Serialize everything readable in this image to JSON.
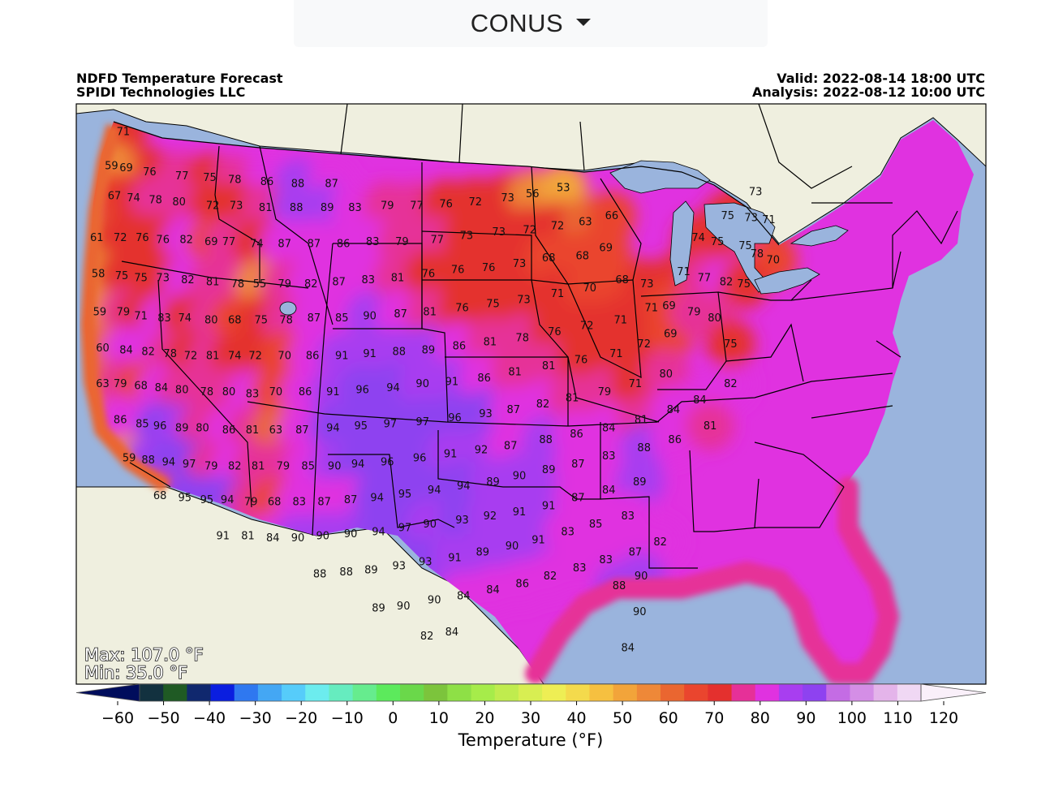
{
  "region_selector": {
    "value": "CONUS"
  },
  "header": {
    "title": "NDFD Temperature Forecast",
    "producer": "SPIDI Technologies LLC",
    "valid": "Valid: 2022-08-14 18:00 UTC",
    "analysis": "Analysis: 2022-08-12 10:00 UTC"
  },
  "stats": {
    "max": "Max: 107.0 °F",
    "min": "Min: 35.0 °F"
  },
  "colorbar": {
    "label": "Temperature (°F)",
    "ticks": [
      -60,
      -50,
      -40,
      -30,
      -20,
      -10,
      0,
      10,
      20,
      30,
      40,
      50,
      60,
      70,
      80,
      90,
      100,
      110,
      120
    ],
    "colors": [
      "#000d5c",
      "#12313f",
      "#1f5a24",
      "#10286e",
      "#0a1ee0",
      "#2f78f0",
      "#44a7f4",
      "#56ccfa",
      "#6cecee",
      "#66ecbf",
      "#66ec8e",
      "#5cea5c",
      "#6ad84a",
      "#7cc43c",
      "#8ee046",
      "#a6ec4a",
      "#c0ec4e",
      "#d8ee52",
      "#eeee54",
      "#f4da4c",
      "#f6c040",
      "#f2a43a",
      "#ee8838",
      "#ea6630",
      "#ea452e",
      "#e4302e",
      "#e63098",
      "#e032e0",
      "#a83ef0",
      "#8e42f0",
      "#c46ce4",
      "#d48ee6",
      "#e4b4ea",
      "#f0d8f4",
      "#faf0fa"
    ],
    "colors_note": "map palette",
    "ocean": "#9ab4dd",
    "land": "#efefdf",
    "lake": "#9ab4dd"
  },
  "station_values": [
    {
      "v": 71,
      "lon": -123.8,
      "lat": 49.6
    },
    {
      "v": 69,
      "lon": -123.6,
      "lat": 47.8
    },
    {
      "v": 76,
      "lon": -122.0,
      "lat": 47.6
    },
    {
      "v": 77,
      "lon": -119.8,
      "lat": 47.4
    },
    {
      "v": 75,
      "lon": -117.9,
      "lat": 47.3
    },
    {
      "v": 78,
      "lon": -116.2,
      "lat": 47.2
    },
    {
      "v": 86,
      "lon": -114.0,
      "lat": 47.1
    },
    {
      "v": 88,
      "lon": -111.9,
      "lat": 47.0
    },
    {
      "v": 87,
      "lon": -109.6,
      "lat": 47.0
    },
    {
      "v": 59,
      "lon": -124.6,
      "lat": 47.9
    },
    {
      "v": 67,
      "lon": -124.4,
      "lat": 46.4
    },
    {
      "v": 74,
      "lon": -123.1,
      "lat": 46.3
    },
    {
      "v": 78,
      "lon": -121.6,
      "lat": 46.2
    },
    {
      "v": 80,
      "lon": -120.0,
      "lat": 46.1
    },
    {
      "v": 72,
      "lon": -117.7,
      "lat": 45.9
    },
    {
      "v": 73,
      "lon": -116.1,
      "lat": 45.9
    },
    {
      "v": 81,
      "lon": -114.1,
      "lat": 45.8
    },
    {
      "v": 88,
      "lon": -112.0,
      "lat": 45.8
    },
    {
      "v": 89,
      "lon": -109.9,
      "lat": 45.8
    },
    {
      "v": 83,
      "lon": -108.0,
      "lat": 45.8
    },
    {
      "v": 79,
      "lon": -105.8,
      "lat": 45.9
    },
    {
      "v": 77,
      "lon": -103.8,
      "lat": 45.9
    },
    {
      "v": 76,
      "lon": -101.8,
      "lat": 46.0
    },
    {
      "v": 72,
      "lon": -99.8,
      "lat": 46.1
    },
    {
      "v": 73,
      "lon": -97.6,
      "lat": 46.3
    },
    {
      "v": 56,
      "lon": -95.9,
      "lat": 46.5
    },
    {
      "v": 53,
      "lon": -93.8,
      "lat": 46.8
    },
    {
      "v": 61,
      "lon": -125.6,
      "lat": 44.3
    },
    {
      "v": 72,
      "lon": -124.0,
      "lat": 44.3
    },
    {
      "v": 76,
      "lon": -122.5,
      "lat": 44.3
    },
    {
      "v": 76,
      "lon": -121.1,
      "lat": 44.2
    },
    {
      "v": 82,
      "lon": -119.5,
      "lat": 44.2
    },
    {
      "v": 69,
      "lon": -117.8,
      "lat": 44.1
    },
    {
      "v": 77,
      "lon": -116.6,
      "lat": 44.1
    },
    {
      "v": 74,
      "lon": -114.7,
      "lat": 44.0
    },
    {
      "v": 87,
      "lon": -112.8,
      "lat": 44.0
    },
    {
      "v": 87,
      "lon": -110.8,
      "lat": 44.0
    },
    {
      "v": 86,
      "lon": -108.8,
      "lat": 44.0
    },
    {
      "v": 83,
      "lon": -106.8,
      "lat": 44.1
    },
    {
      "v": 79,
      "lon": -104.8,
      "lat": 44.1
    },
    {
      "v": 77,
      "lon": -102.4,
      "lat": 44.2
    },
    {
      "v": 73,
      "lon": -100.4,
      "lat": 44.4
    },
    {
      "v": 73,
      "lon": -98.2,
      "lat": 44.6
    },
    {
      "v": 72,
      "lon": -96.1,
      "lat": 44.7
    },
    {
      "v": 72,
      "lon": -94.2,
      "lat": 44.9
    },
    {
      "v": 63,
      "lon": -92.3,
      "lat": 45.1
    },
    {
      "v": 66,
      "lon": -90.5,
      "lat": 45.4
    },
    {
      "v": 58,
      "lon": -125.5,
      "lat": 42.5
    },
    {
      "v": 75,
      "lon": -123.9,
      "lat": 42.4
    },
    {
      "v": 75,
      "lon": -122.6,
      "lat": 42.3
    },
    {
      "v": 73,
      "lon": -121.1,
      "lat": 42.3
    },
    {
      "v": 82,
      "lon": -119.4,
      "lat": 42.2
    },
    {
      "v": 81,
      "lon": -117.7,
      "lat": 42.1
    },
    {
      "v": 78,
      "lon": -116.0,
      "lat": 42.0
    },
    {
      "v": 55,
      "lon": -114.5,
      "lat": 42.0
    },
    {
      "v": 79,
      "lon": -112.8,
      "lat": 42.0
    },
    {
      "v": 82,
      "lon": -111.0,
      "lat": 42.0
    },
    {
      "v": 87,
      "lon": -109.1,
      "lat": 42.1
    },
    {
      "v": 83,
      "lon": -107.1,
      "lat": 42.2
    },
    {
      "v": 81,
      "lon": -105.1,
      "lat": 42.3
    },
    {
      "v": 76,
      "lon": -103.0,
      "lat": 42.5
    },
    {
      "v": 76,
      "lon": -101.0,
      "lat": 42.7
    },
    {
      "v": 76,
      "lon": -98.9,
      "lat": 42.8
    },
    {
      "v": 73,
      "lon": -96.8,
      "lat": 43.0
    },
    {
      "v": 68,
      "lon": -94.8,
      "lat": 43.3
    },
    {
      "v": 68,
      "lon": -92.5,
      "lat": 43.4
    },
    {
      "v": 69,
      "lon": -90.9,
      "lat": 43.8
    },
    {
      "v": 59,
      "lon": -125.4,
      "lat": 40.6
    },
    {
      "v": 79,
      "lon": -123.8,
      "lat": 40.6
    },
    {
      "v": 71,
      "lon": -122.6,
      "lat": 40.4
    },
    {
      "v": 83,
      "lon": -121.0,
      "lat": 40.3
    },
    {
      "v": 74,
      "lon": -119.6,
      "lat": 40.3
    },
    {
      "v": 80,
      "lon": -117.8,
      "lat": 40.2
    },
    {
      "v": 68,
      "lon": -116.2,
      "lat": 40.2
    },
    {
      "v": 75,
      "lon": -114.4,
      "lat": 40.2
    },
    {
      "v": 78,
      "lon": -112.7,
      "lat": 40.2
    },
    {
      "v": 87,
      "lon": -110.8,
      "lat": 40.3
    },
    {
      "v": 85,
      "lon": -108.9,
      "lat": 40.3
    },
    {
      "v": 90,
      "lon": -107.0,
      "lat": 40.4
    },
    {
      "v": 87,
      "lon": -104.9,
      "lat": 40.5
    },
    {
      "v": 81,
      "lon": -102.9,
      "lat": 40.6
    },
    {
      "v": 76,
      "lon": -100.7,
      "lat": 40.8
    },
    {
      "v": 75,
      "lon": -98.6,
      "lat": 41.0
    },
    {
      "v": 73,
      "lon": -96.5,
      "lat": 41.2
    },
    {
      "v": 71,
      "lon": -94.2,
      "lat": 41.5
    },
    {
      "v": 70,
      "lon": -92.0,
      "lat": 41.8
    },
    {
      "v": 68,
      "lon": -89.8,
      "lat": 42.2
    },
    {
      "v": 60,
      "lon": -125.2,
      "lat": 38.8
    },
    {
      "v": 84,
      "lon": -123.6,
      "lat": 38.7
    },
    {
      "v": 82,
      "lon": -122.1,
      "lat": 38.6
    },
    {
      "v": 78,
      "lon": -120.6,
      "lat": 38.5
    },
    {
      "v": 72,
      "lon": -119.2,
      "lat": 38.4
    },
    {
      "v": 81,
      "lon": -117.7,
      "lat": 38.4
    },
    {
      "v": 74,
      "lon": -116.2,
      "lat": 38.4
    },
    {
      "v": 72,
      "lon": -114.8,
      "lat": 38.4
    },
    {
      "v": 70,
      "lon": -112.8,
      "lat": 38.4
    },
    {
      "v": 86,
      "lon": -110.9,
      "lat": 38.4
    },
    {
      "v": 91,
      "lon": -108.9,
      "lat": 38.4
    },
    {
      "v": 91,
      "lon": -107.0,
      "lat": 38.5
    },
    {
      "v": 88,
      "lon": -105.0,
      "lat": 38.6
    },
    {
      "v": 89,
      "lon": -103.0,
      "lat": 38.7
    },
    {
      "v": 86,
      "lon": -100.9,
      "lat": 38.9
    },
    {
      "v": 81,
      "lon": -98.8,
      "lat": 39.1
    },
    {
      "v": 78,
      "lon": -96.6,
      "lat": 39.3
    },
    {
      "v": 76,
      "lon": -94.4,
      "lat": 39.6
    },
    {
      "v": 72,
      "lon": -92.2,
      "lat": 39.9
    },
    {
      "v": 71,
      "lon": -89.9,
      "lat": 40.2
    },
    {
      "v": 71,
      "lon": -87.8,
      "lat": 40.8
    },
    {
      "v": 63,
      "lon": -125.2,
      "lat": 37.0
    },
    {
      "v": 79,
      "lon": -124.0,
      "lat": 37.0
    },
    {
      "v": 68,
      "lon": -122.6,
      "lat": 36.9
    },
    {
      "v": 84,
      "lon": -121.2,
      "lat": 36.8
    },
    {
      "v": 80,
      "lon": -119.8,
      "lat": 36.7
    },
    {
      "v": 78,
      "lon": -118.1,
      "lat": 36.6
    },
    {
      "v": 80,
      "lon": -116.6,
      "lat": 36.6
    },
    {
      "v": 83,
      "lon": -115.0,
      "lat": 36.5
    },
    {
      "v": 70,
      "lon": -113.4,
      "lat": 36.6
    },
    {
      "v": 86,
      "lon": -111.4,
      "lat": 36.6
    },
    {
      "v": 91,
      "lon": -109.5,
      "lat": 36.6
    },
    {
      "v": 96,
      "lon": -107.5,
      "lat": 36.7
    },
    {
      "v": 94,
      "lon": -105.4,
      "lat": 36.8
    },
    {
      "v": 90,
      "lon": -103.4,
      "lat": 37.0
    },
    {
      "v": 91,
      "lon": -101.4,
      "lat": 37.1
    },
    {
      "v": 86,
      "lon": -99.2,
      "lat": 37.3
    },
    {
      "v": 81,
      "lon": -97.1,
      "lat": 37.6
    },
    {
      "v": 81,
      "lon": -94.8,
      "lat": 37.9
    },
    {
      "v": 76,
      "lon": -92.6,
      "lat": 38.2
    },
    {
      "v": 71,
      "lon": -90.2,
      "lat": 38.5
    },
    {
      "v": 72,
      "lon": -88.3,
      "lat": 39.0
    },
    {
      "v": 69,
      "lon": -86.5,
      "lat": 39.5
    },
    {
      "v": 86,
      "lon": -124.0,
      "lat": 35.2
    },
    {
      "v": 85,
      "lon": -122.5,
      "lat": 35.0
    },
    {
      "v": 96,
      "lon": -121.3,
      "lat": 34.9
    },
    {
      "v": 89,
      "lon": -119.8,
      "lat": 34.8
    },
    {
      "v": 80,
      "lon": -118.4,
      "lat": 34.8
    },
    {
      "v": 86,
      "lon": -116.6,
      "lat": 34.7
    },
    {
      "v": 81,
      "lon": -115.0,
      "lat": 34.7
    },
    {
      "v": 63,
      "lon": -113.4,
      "lat": 34.7
    },
    {
      "v": 87,
      "lon": -111.6,
      "lat": 34.7
    },
    {
      "v": 94,
      "lon": -109.5,
      "lat": 34.8
    },
    {
      "v": 95,
      "lon": -107.6,
      "lat": 34.9
    },
    {
      "v": 97,
      "lon": -105.6,
      "lat": 35.0
    },
    {
      "v": 97,
      "lon": -103.4,
      "lat": 35.1
    },
    {
      "v": 96,
      "lon": -101.2,
      "lat": 35.3
    },
    {
      "v": 93,
      "lon": -99.1,
      "lat": 35.5
    },
    {
      "v": 87,
      "lon": -97.2,
      "lat": 35.7
    },
    {
      "v": 82,
      "lon": -95.2,
      "lat": 36.0
    },
    {
      "v": 81,
      "lon": -93.2,
      "lat": 36.3
    },
    {
      "v": 79,
      "lon": -91.0,
      "lat": 36.6
    },
    {
      "v": 71,
      "lon": -88.9,
      "lat": 37.0
    },
    {
      "v": 80,
      "lon": -86.8,
      "lat": 37.5
    },
    {
      "v": 59,
      "lon": -123.4,
      "lat": 33.3
    },
    {
      "v": 88,
      "lon": -122.1,
      "lat": 33.2
    },
    {
      "v": 94,
      "lon": -120.7,
      "lat": 33.1
    },
    {
      "v": 97,
      "lon": -119.3,
      "lat": 33.0
    },
    {
      "v": 79,
      "lon": -117.8,
      "lat": 32.9
    },
    {
      "v": 82,
      "lon": -116.2,
      "lat": 32.9
    },
    {
      "v": 81,
      "lon": -114.6,
      "lat": 32.9
    },
    {
      "v": 79,
      "lon": -112.9,
      "lat": 32.9
    },
    {
      "v": 85,
      "lon": -111.2,
      "lat": 32.9
    },
    {
      "v": 90,
      "lon": -109.4,
      "lat": 32.9
    },
    {
      "v": 94,
      "lon": -107.8,
      "lat": 33.0
    },
    {
      "v": 96,
      "lon": -105.8,
      "lat": 33.1
    },
    {
      "v": 96,
      "lon": -103.6,
      "lat": 33.3
    },
    {
      "v": 91,
      "lon": -101.5,
      "lat": 33.5
    },
    {
      "v": 92,
      "lon": -99.4,
      "lat": 33.7
    },
    {
      "v": 87,
      "lon": -97.4,
      "lat": 33.9
    },
    {
      "v": 88,
      "lon": -95.0,
      "lat": 34.2
    },
    {
      "v": 86,
      "lon": -92.9,
      "lat": 34.5
    },
    {
      "v": 84,
      "lon": -90.7,
      "lat": 34.8
    },
    {
      "v": 81,
      "lon": -88.5,
      "lat": 35.2
    },
    {
      "v": 84,
      "lon": -86.3,
      "lat": 35.7
    },
    {
      "v": 84,
      "lon": -84.5,
      "lat": 36.2
    },
    {
      "v": 82,
      "lon": -82.4,
      "lat": 37.0
    },
    {
      "v": 68,
      "lon": -121.3,
      "lat": 31.4
    },
    {
      "v": 95,
      "lon": -119.6,
      "lat": 31.3
    },
    {
      "v": 95,
      "lon": -118.1,
      "lat": 31.2
    },
    {
      "v": 94,
      "lon": -116.7,
      "lat": 31.2
    },
    {
      "v": 79,
      "lon": -115.1,
      "lat": 31.1
    },
    {
      "v": 68,
      "lon": -113.5,
      "lat": 31.1
    },
    {
      "v": 83,
      "lon": -111.8,
      "lat": 31.1
    },
    {
      "v": 87,
      "lon": -110.1,
      "lat": 31.1
    },
    {
      "v": 87,
      "lon": -108.3,
      "lat": 31.2
    },
    {
      "v": 94,
      "lon": -106.5,
      "lat": 31.3
    },
    {
      "v": 95,
      "lon": -104.6,
      "lat": 31.5
    },
    {
      "v": 94,
      "lon": -102.6,
      "lat": 31.7
    },
    {
      "v": 94,
      "lon": -100.6,
      "lat": 31.9
    },
    {
      "v": 89,
      "lon": -98.6,
      "lat": 32.1
    },
    {
      "v": 90,
      "lon": -96.8,
      "lat": 32.4
    },
    {
      "v": 89,
      "lon": -94.8,
      "lat": 32.7
    },
    {
      "v": 87,
      "lon": -92.8,
      "lat": 33.0
    },
    {
      "v": 83,
      "lon": -90.7,
      "lat": 33.4
    },
    {
      "v": 88,
      "lon": -88.3,
      "lat": 33.8
    },
    {
      "v": 86,
      "lon": -86.2,
      "lat": 34.2
    },
    {
      "v": 81,
      "lon": -83.8,
      "lat": 34.9
    },
    {
      "v": 91,
      "lon": -117.0,
      "lat": 29.4
    },
    {
      "v": 81,
      "lon": -115.3,
      "lat": 29.4
    },
    {
      "v": 84,
      "lon": -113.6,
      "lat": 29.3
    },
    {
      "v": 90,
      "lon": -111.9,
      "lat": 29.3
    },
    {
      "v": 90,
      "lon": -110.2,
      "lat": 29.4
    },
    {
      "v": 90,
      "lon": -108.3,
      "lat": 29.5
    },
    {
      "v": 94,
      "lon": -106.4,
      "lat": 29.6
    },
    {
      "v": 97,
      "lon": -104.6,
      "lat": 29.8
    },
    {
      "v": 90,
      "lon": -102.9,
      "lat": 30.0
    },
    {
      "v": 93,
      "lon": -100.7,
      "lat": 30.2
    },
    {
      "v": 92,
      "lon": -98.8,
      "lat": 30.4
    },
    {
      "v": 91,
      "lon": -96.8,
      "lat": 30.6
    },
    {
      "v": 91,
      "lon": -94.8,
      "lat": 30.9
    },
    {
      "v": 87,
      "lon": -92.8,
      "lat": 31.3
    },
    {
      "v": 84,
      "lon": -90.7,
      "lat": 31.7
    },
    {
      "v": 89,
      "lon": -88.6,
      "lat": 32.1
    },
    {
      "v": 88,
      "lon": -110.4,
      "lat": 27.5
    },
    {
      "v": 88,
      "lon": -108.6,
      "lat": 27.6
    },
    {
      "v": 89,
      "lon": -106.9,
      "lat": 27.7
    },
    {
      "v": 93,
      "lon": -105.0,
      "lat": 27.9
    },
    {
      "v": 93,
      "lon": -103.2,
      "lat": 28.1
    },
    {
      "v": 91,
      "lon": -101.2,
      "lat": 28.3
    },
    {
      "v": 89,
      "lon": -99.3,
      "lat": 28.6
    },
    {
      "v": 90,
      "lon": -97.3,
      "lat": 28.9
    },
    {
      "v": 91,
      "lon": -95.5,
      "lat": 29.2
    },
    {
      "v": 83,
      "lon": -93.5,
      "lat": 29.6
    },
    {
      "v": 85,
      "lon": -91.6,
      "lat": 30.0
    },
    {
      "v": 83,
      "lon": -89.4,
      "lat": 30.4
    },
    {
      "v": 89,
      "lon": -106.4,
      "lat": 25.8
    },
    {
      "v": 90,
      "lon": -104.7,
      "lat": 25.9
    },
    {
      "v": 90,
      "lon": -102.6,
      "lat": 26.2
    },
    {
      "v": 84,
      "lon": -100.6,
      "lat": 26.4
    },
    {
      "v": 84,
      "lon": -98.6,
      "lat": 26.7
    },
    {
      "v": 86,
      "lon": -96.6,
      "lat": 27.0
    },
    {
      "v": 82,
      "lon": -94.7,
      "lat": 27.4
    },
    {
      "v": 83,
      "lon": -92.7,
      "lat": 27.8
    },
    {
      "v": 83,
      "lon": -90.9,
      "lat": 28.2
    },
    {
      "v": 87,
      "lon": -88.9,
      "lat": 28.6
    },
    {
      "v": 82,
      "lon": -87.2,
      "lat": 29.1
    },
    {
      "v": 82,
      "lon": -103.1,
      "lat": 24.4
    },
    {
      "v": 84,
      "lon": -101.4,
      "lat": 24.6
    },
    {
      "v": 88,
      "lon": -90.0,
      "lat": 26.9
    },
    {
      "v": 90,
      "lon": -88.5,
      "lat": 27.4
    },
    {
      "v": 90,
      "lon": -88.6,
      "lat": 25.6
    },
    {
      "v": 84,
      "lon": -89.4,
      "lat": 23.8
    },
    {
      "v": 73,
      "lon": -80.7,
      "lat": 46.6
    },
    {
      "v": 75,
      "lon": -82.6,
      "lat": 45.4
    },
    {
      "v": 73,
      "lon": -81.0,
      "lat": 45.3
    },
    {
      "v": 71,
      "lon": -79.8,
      "lat": 45.2
    },
    {
      "v": 74,
      "lon": -84.6,
      "lat": 44.3
    },
    {
      "v": 75,
      "lon": -83.3,
      "lat": 44.1
    },
    {
      "v": 75,
      "lon": -81.4,
      "lat": 43.9
    },
    {
      "v": 78,
      "lon": -80.6,
      "lat": 43.5
    },
    {
      "v": 70,
      "lon": -79.5,
      "lat": 43.2
    },
    {
      "v": 71,
      "lon": -85.6,
      "lat": 42.6
    },
    {
      "v": 77,
      "lon": -84.2,
      "lat": 42.3
    },
    {
      "v": 82,
      "lon": -82.7,
      "lat": 42.1
    },
    {
      "v": 75,
      "lon": -81.5,
      "lat": 42.0
    },
    {
      "v": 73,
      "lon": -88.1,
      "lat": 42.0
    },
    {
      "v": 69,
      "lon": -86.6,
      "lat": 40.9
    },
    {
      "v": 79,
      "lon": -84.9,
      "lat": 40.6
    },
    {
      "v": 80,
      "lon": -83.5,
      "lat": 40.3
    },
    {
      "v": 75,
      "lon": -82.4,
      "lat": 39.0
    }
  ]
}
